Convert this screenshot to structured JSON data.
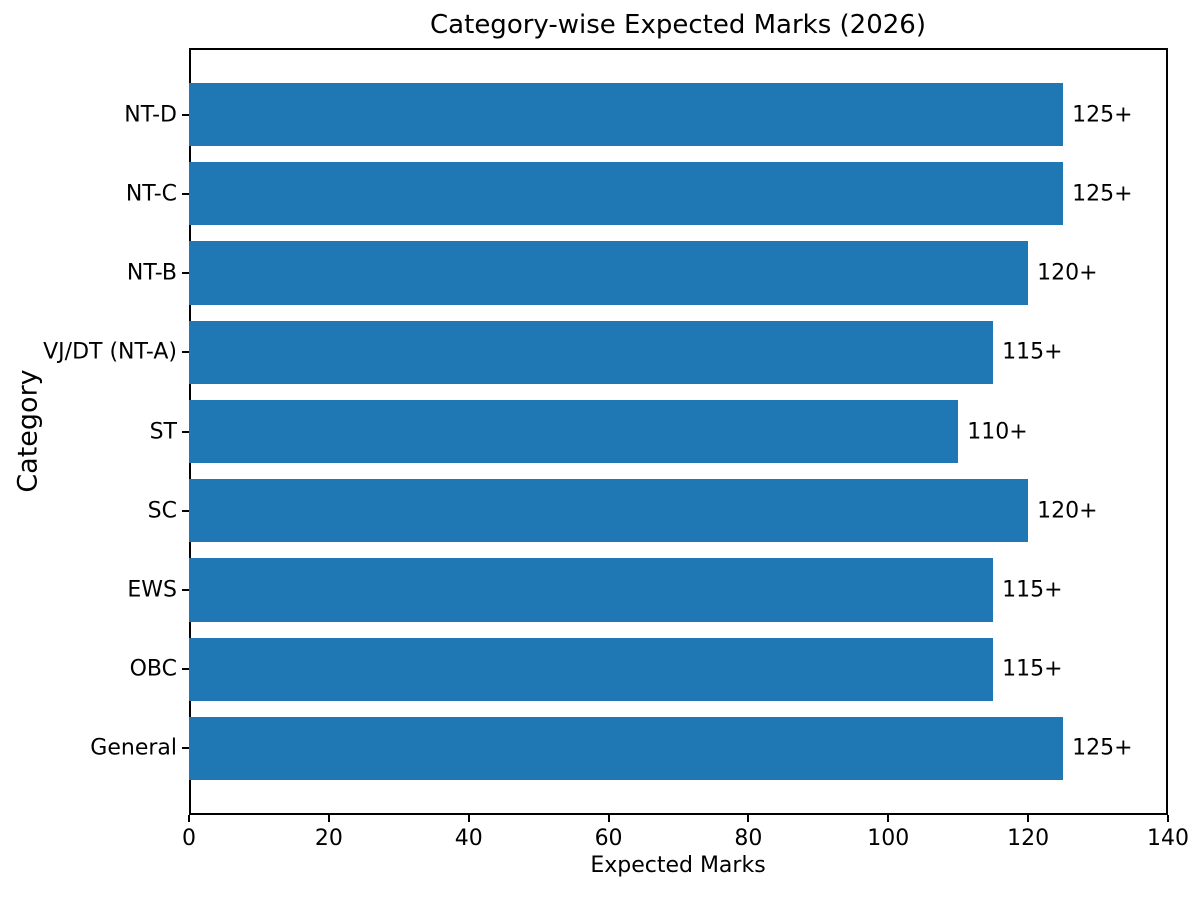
{
  "chart_data": {
    "type": "bar",
    "orientation": "horizontal",
    "title": "Category-wise Expected Marks (2026)",
    "xlabel": "Expected Marks",
    "ylabel": "Category",
    "category_order": "top-to-bottom",
    "categories": [
      "NT-D",
      "NT-C",
      "NT-B",
      "VJ/DT (NT-A)",
      "ST",
      "SC",
      "EWS",
      "OBC",
      "General"
    ],
    "values": [
      125,
      125,
      120,
      115,
      110,
      120,
      115,
      115,
      125
    ],
    "bar_labels": [
      "125+",
      "125+",
      "120+",
      "115+",
      "110+",
      "120+",
      "115+",
      "115+",
      "125+"
    ],
    "xlim": [
      0,
      140
    ],
    "xticks": [
      0,
      20,
      40,
      60,
      80,
      100,
      120,
      140
    ],
    "bar_color": "#1f77b4",
    "text_color": "#000000",
    "spine_color": "#000000",
    "background_color": "#ffffff",
    "grid": false
  }
}
